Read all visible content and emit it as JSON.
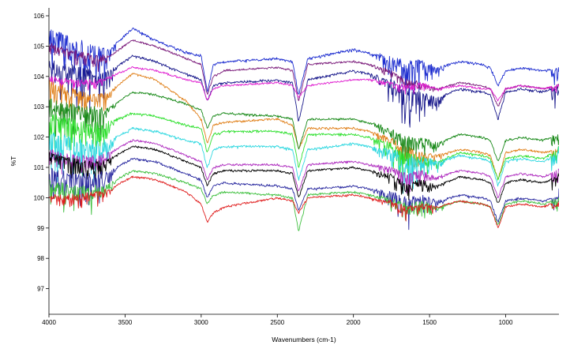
{
  "chart_data": {
    "type": "line",
    "title": "",
    "xlabel": "Wavenumbers (cm-1)",
    "ylabel": "%T",
    "xlim": [
      4000,
      650
    ],
    "ylim": [
      96.4,
      106.4
    ],
    "x_reversed": true,
    "grid": false,
    "legend": "none",
    "x_ticks": [
      4000,
      3500,
      3000,
      2500,
      2000,
      1500,
      1000
    ],
    "x_tick_labels": [
      "4000",
      "3500",
      "3000",
      "2500",
      "2000",
      "1500",
      "1000"
    ],
    "y_ticks": [
      97,
      98,
      99,
      100,
      101,
      102,
      103,
      104,
      105,
      106
    ],
    "y_tick_labels": [
      "97",
      "98",
      "99",
      "100",
      "101",
      "102",
      "103",
      "104",
      "105",
      "106"
    ],
    "series": [
      {
        "color": "#1f2fd0",
        "noise": 0.9,
        "x": [
          4000,
          3850,
          3700,
          3600,
          3450,
          3300,
          3100,
          3000,
          2960,
          2920,
          2850,
          2500,
          2400,
          2360,
          2300,
          2000,
          1900,
          1750,
          1650,
          1550,
          1450,
          1300,
          1150,
          1100,
          1050,
          1000,
          900,
          750,
          660,
          650
        ],
        "y": [
          105.6,
          105.3,
          105.0,
          104.9,
          105.6,
          105.2,
          104.8,
          104.7,
          103.5,
          104.4,
          104.5,
          104.6,
          104.5,
          103.4,
          104.6,
          104.9,
          104.8,
          104.7,
          104.5,
          104.6,
          104.3,
          104.5,
          104.4,
          104.3,
          103.7,
          104.2,
          104.3,
          104.2,
          104.3,
          104.4
        ]
      },
      {
        "color": "#7a1a7a",
        "noise": 0.3,
        "x": [
          4000,
          3850,
          3700,
          3600,
          3450,
          3300,
          3100,
          3000,
          2960,
          2920,
          2850,
          2500,
          2400,
          2360,
          2300,
          2000,
          1900,
          1750,
          1650,
          1550,
          1450,
          1300,
          1150,
          1100,
          1050,
          1000,
          900,
          750,
          660,
          650
        ],
        "y": [
          105.1,
          104.9,
          104.7,
          104.7,
          105.2,
          105.0,
          104.6,
          104.4,
          103.4,
          104.0,
          104.2,
          104.3,
          104.2,
          103.2,
          104.4,
          104.5,
          104.4,
          104.2,
          103.9,
          103.8,
          103.6,
          103.8,
          103.7,
          103.6,
          103.0,
          103.6,
          103.7,
          103.6,
          103.7,
          103.8
        ]
      },
      {
        "color": "#1a1a8c",
        "noise": 0.8,
        "x": [
          4000,
          3850,
          3700,
          3600,
          3450,
          3300,
          3100,
          3000,
          2960,
          2920,
          2850,
          2500,
          2400,
          2360,
          2300,
          2000,
          1900,
          1750,
          1650,
          1550,
          1450,
          1300,
          1150,
          1100,
          1050,
          1000,
          900,
          750,
          660,
          650
        ],
        "y": [
          104.6,
          104.4,
          104.2,
          104.2,
          104.7,
          104.5,
          104.1,
          103.9,
          103.2,
          103.7,
          103.8,
          103.9,
          103.8,
          102.5,
          103.9,
          104.2,
          104.1,
          103.9,
          103.6,
          103.5,
          103.3,
          103.6,
          103.5,
          103.4,
          102.6,
          103.5,
          103.6,
          103.5,
          103.7,
          103.9
        ]
      },
      {
        "color": "#e020d0",
        "noise": 0.2,
        "x": [
          4000,
          3850,
          3700,
          3600,
          3450,
          3300,
          3100,
          3000,
          2960,
          2920,
          2850,
          2500,
          2400,
          2360,
          2300,
          2000,
          1900,
          1750,
          1650,
          1550,
          1450,
          1300,
          1150,
          1100,
          1050,
          1000,
          900,
          750,
          660,
          650
        ],
        "y": [
          104.0,
          103.9,
          103.9,
          104.0,
          104.3,
          104.2,
          103.9,
          103.8,
          103.2,
          103.6,
          103.7,
          103.8,
          103.7,
          103.3,
          103.7,
          103.9,
          103.9,
          103.8,
          103.7,
          103.8,
          103.6,
          103.7,
          103.6,
          103.6,
          103.2,
          103.6,
          103.7,
          103.6,
          103.7,
          103.8
        ]
      },
      {
        "color": "#e0801a",
        "noise": 0.5,
        "x": [
          4000,
          3850,
          3700,
          3600,
          3450,
          3300,
          3100,
          3000,
          2960,
          2920,
          2850,
          2500,
          2400,
          2360,
          2300,
          2000,
          1900,
          1750,
          1650,
          1550,
          1450,
          1300,
          1150,
          1100,
          1050,
          1000,
          900,
          750,
          660,
          650
        ],
        "y": [
          103.9,
          103.6,
          103.4,
          103.5,
          104.1,
          103.9,
          103.2,
          102.6,
          101.8,
          102.4,
          102.5,
          102.6,
          102.4,
          101.6,
          102.3,
          102.3,
          102.2,
          102.0,
          101.7,
          101.5,
          101.4,
          101.6,
          101.5,
          101.4,
          100.6,
          101.5,
          101.6,
          101.5,
          101.6,
          101.7
        ]
      },
      {
        "color": "#1a8a1a",
        "noise": 0.6,
        "x": [
          4000,
          3850,
          3700,
          3600,
          3450,
          3300,
          3100,
          3000,
          2960,
          2920,
          2850,
          2500,
          2400,
          2360,
          2300,
          2000,
          1900,
          1750,
          1650,
          1550,
          1450,
          1300,
          1150,
          1100,
          1050,
          1000,
          900,
          750,
          660,
          650
        ],
        "y": [
          103.3,
          103.1,
          103.0,
          103.0,
          103.5,
          103.4,
          103.1,
          102.9,
          102.3,
          102.7,
          102.8,
          102.7,
          102.6,
          101.6,
          102.6,
          102.6,
          102.5,
          102.3,
          102.0,
          102.0,
          101.8,
          102.1,
          102.0,
          101.9,
          101.2,
          101.9,
          102.0,
          101.9,
          102.1,
          102.2
        ]
      },
      {
        "color": "#30e030",
        "noise": 0.7,
        "x": [
          4000,
          3850,
          3700,
          3600,
          3450,
          3300,
          3100,
          3000,
          2960,
          2920,
          2850,
          2500,
          2400,
          2360,
          2300,
          2000,
          1900,
          1750,
          1650,
          1550,
          1450,
          1300,
          1150,
          1100,
          1050,
          1000,
          900,
          750,
          660,
          650
        ],
        "y": [
          102.8,
          102.6,
          102.5,
          102.5,
          102.8,
          102.7,
          102.4,
          102.3,
          101.5,
          102.1,
          102.2,
          102.2,
          102.1,
          101.0,
          102.1,
          102.1,
          102.0,
          101.8,
          101.5,
          101.4,
          101.2,
          101.5,
          101.4,
          101.3,
          100.6,
          101.3,
          101.4,
          101.3,
          101.6,
          101.8
        ]
      },
      {
        "color": "#30d8e0",
        "noise": 0.8,
        "x": [
          4000,
          3850,
          3700,
          3600,
          3450,
          3300,
          3100,
          3000,
          2960,
          2920,
          2850,
          2500,
          2400,
          2360,
          2300,
          2000,
          1900,
          1750,
          1650,
          1550,
          1450,
          1300,
          1150,
          1100,
          1050,
          1000,
          900,
          750,
          660,
          650
        ],
        "y": [
          102.2,
          102.0,
          101.9,
          101.9,
          102.3,
          102.2,
          101.9,
          101.8,
          101.0,
          101.6,
          101.7,
          101.7,
          101.6,
          100.6,
          101.6,
          101.8,
          101.7,
          101.6,
          101.4,
          101.4,
          101.2,
          101.4,
          101.3,
          101.2,
          100.4,
          101.2,
          101.3,
          101.2,
          101.5,
          101.7
        ]
      },
      {
        "color": "#b030c0",
        "noise": 0.4,
        "x": [
          4000,
          3850,
          3700,
          3600,
          3450,
          3300,
          3100,
          3000,
          2960,
          2920,
          2850,
          2500,
          2400,
          2360,
          2300,
          2000,
          1900,
          1750,
          1650,
          1550,
          1450,
          1300,
          1150,
          1100,
          1050,
          1000,
          900,
          750,
          660,
          650
        ],
        "y": [
          101.6,
          101.4,
          101.4,
          101.5,
          101.9,
          101.8,
          101.4,
          101.2,
          100.6,
          101.0,
          101.1,
          101.1,
          101.0,
          100.2,
          101.1,
          101.2,
          101.1,
          101.0,
          100.8,
          100.9,
          100.7,
          100.9,
          100.8,
          100.7,
          100.0,
          100.7,
          100.8,
          100.7,
          100.9,
          101.1
        ]
      },
      {
        "color": "#000000",
        "noise": 0.4,
        "x": [
          4000,
          3850,
          3700,
          3600,
          3450,
          3300,
          3100,
          3000,
          2960,
          2920,
          2850,
          2500,
          2400,
          2360,
          2300,
          2000,
          1900,
          1750,
          1650,
          1550,
          1450,
          1300,
          1150,
          1100,
          1050,
          1000,
          900,
          750,
          660,
          650
        ],
        "y": [
          101.5,
          101.3,
          101.2,
          101.3,
          101.7,
          101.6,
          101.2,
          101.0,
          100.4,
          100.8,
          100.9,
          100.9,
          100.8,
          100.0,
          100.9,
          101.0,
          100.9,
          100.8,
          100.5,
          100.6,
          100.4,
          100.7,
          100.6,
          100.5,
          99.8,
          100.5,
          100.6,
          100.5,
          100.7,
          100.9
        ]
      },
      {
        "color": "#2a2aa0",
        "noise": 0.6,
        "x": [
          4000,
          3850,
          3700,
          3600,
          3450,
          3300,
          3100,
          3000,
          2960,
          2920,
          2850,
          2500,
          2400,
          2360,
          2300,
          2000,
          1900,
          1750,
          1650,
          1550,
          1450,
          1300,
          1150,
          1100,
          1050,
          1000,
          900,
          750,
          660,
          650
        ],
        "y": [
          101.0,
          100.8,
          100.8,
          100.9,
          101.3,
          101.2,
          100.8,
          100.6,
          100.0,
          100.4,
          100.5,
          100.4,
          100.3,
          99.6,
          100.3,
          100.4,
          100.3,
          100.2,
          100.0,
          100.1,
          99.9,
          100.1,
          100.0,
          99.9,
          99.2,
          99.9,
          100.0,
          99.9,
          100.1,
          100.3
        ]
      },
      {
        "color": "#40c040",
        "noise": 0.5,
        "x": [
          4000,
          3850,
          3700,
          3600,
          3450,
          3300,
          3100,
          3000,
          2960,
          2920,
          2850,
          2500,
          2400,
          2360,
          2300,
          2000,
          1900,
          1750,
          1650,
          1550,
          1450,
          1300,
          1150,
          1100,
          1050,
          1000,
          900,
          750,
          660,
          650
        ],
        "y": [
          100.6,
          100.4,
          100.4,
          100.5,
          100.9,
          100.8,
          100.5,
          100.3,
          99.8,
          100.1,
          100.2,
          100.1,
          100.0,
          98.9,
          100.1,
          100.2,
          100.1,
          100.0,
          99.8,
          99.9,
          99.7,
          99.9,
          99.8,
          99.7,
          99.1,
          99.8,
          99.9,
          99.8,
          100.0,
          100.2
        ]
      },
      {
        "color": "#e02020",
        "noise": 0.3,
        "x": [
          4000,
          3850,
          3700,
          3600,
          3450,
          3300,
          3100,
          3000,
          2960,
          2920,
          2850,
          2500,
          2400,
          2360,
          2300,
          2000,
          1900,
          1750,
          1650,
          1550,
          1450,
          1300,
          1150,
          1100,
          1050,
          1000,
          900,
          750,
          660,
          650
        ],
        "y": [
          100.1,
          100.1,
          100.2,
          100.3,
          100.7,
          100.6,
          100.2,
          99.8,
          99.2,
          99.5,
          99.7,
          100.0,
          99.9,
          99.5,
          100.0,
          100.1,
          100.0,
          99.9,
          99.7,
          99.8,
          99.7,
          99.9,
          99.8,
          99.7,
          99.0,
          99.7,
          99.8,
          99.7,
          99.9,
          100.1
        ]
      }
    ]
  }
}
